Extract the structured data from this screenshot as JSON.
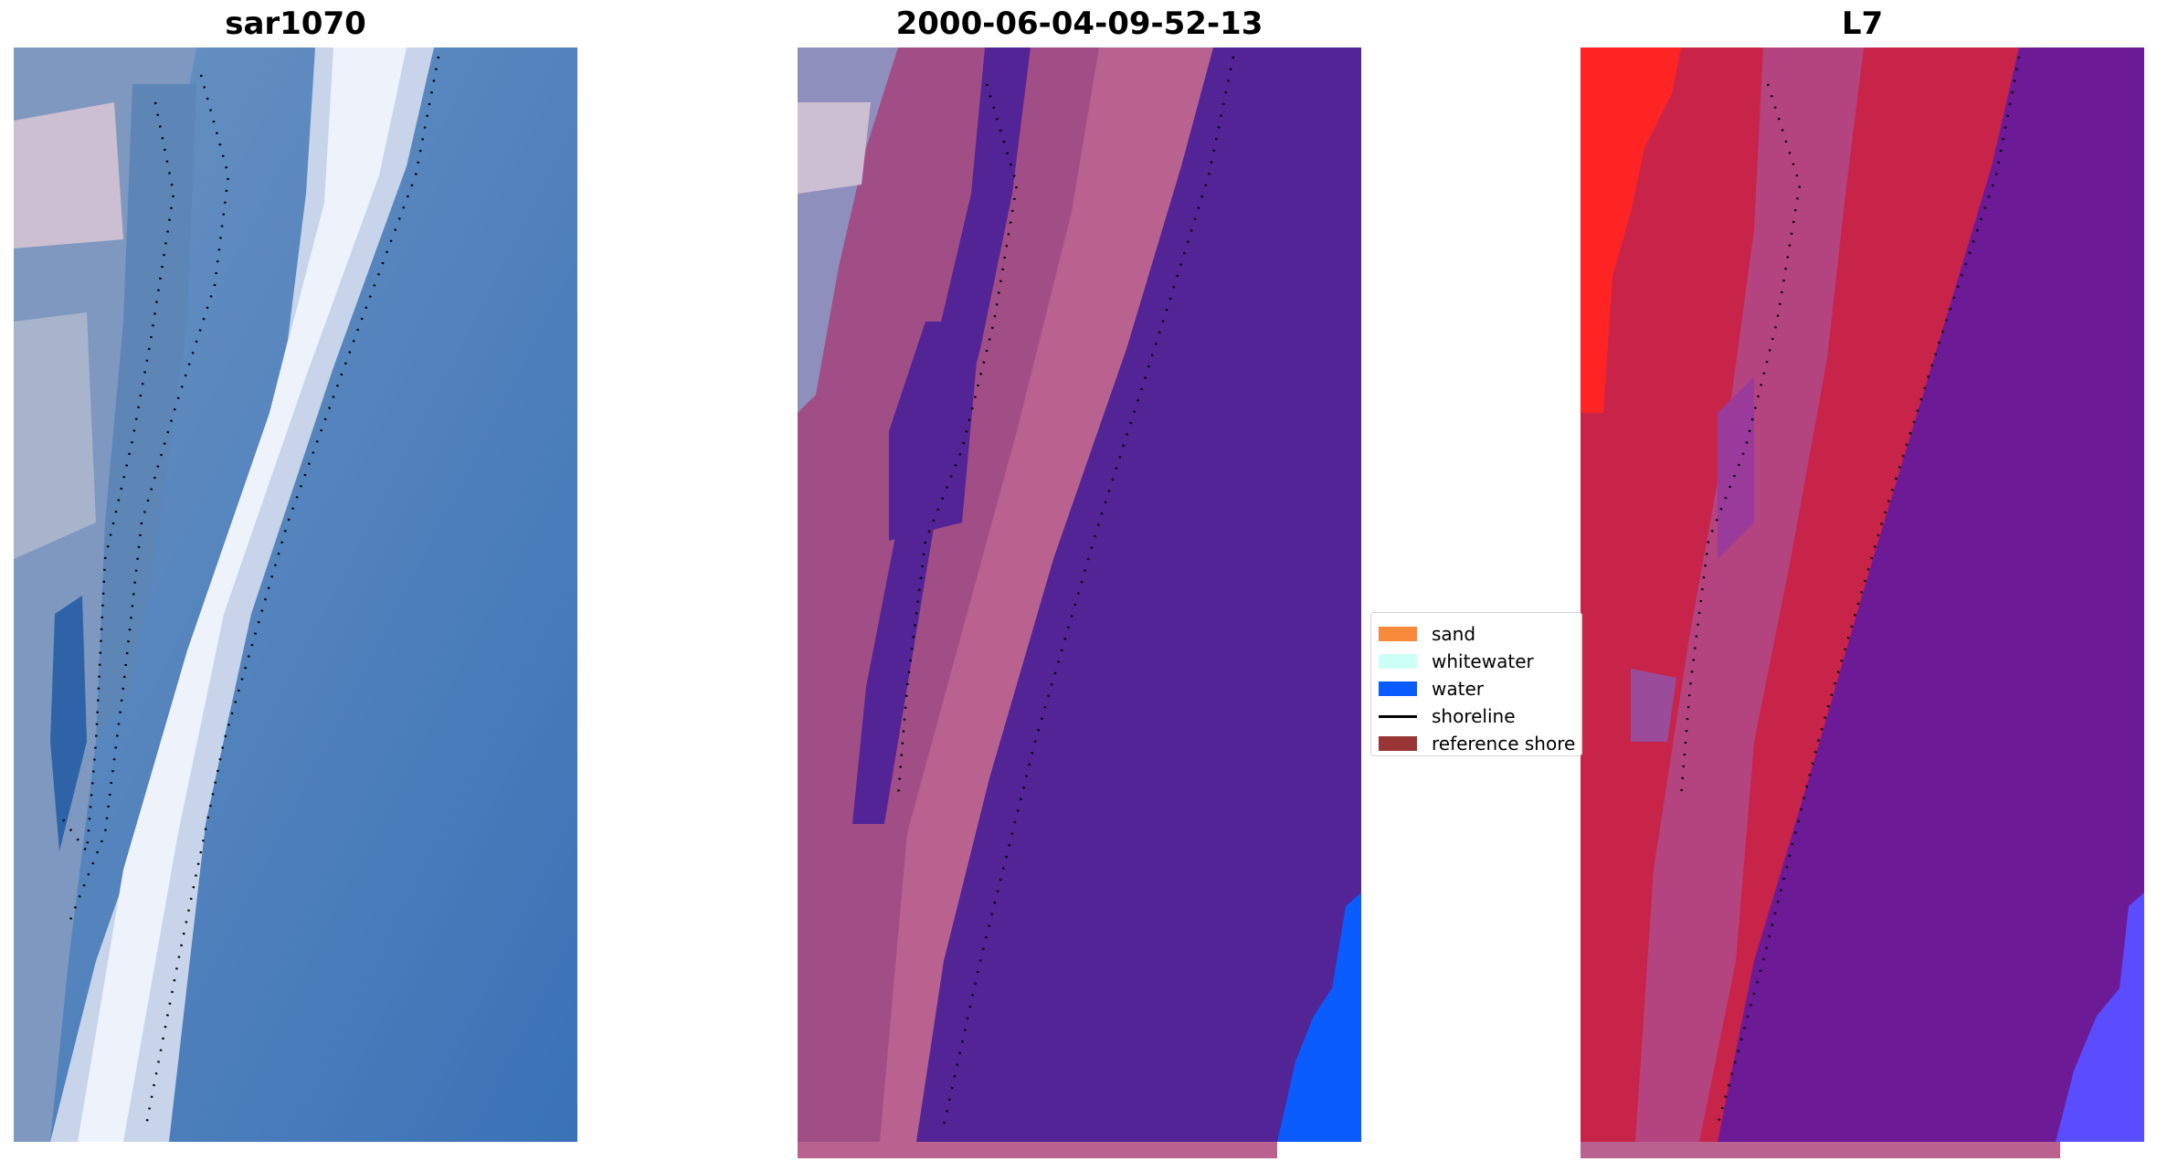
{
  "panels": [
    {
      "title": "sar1070",
      "kind": "rgb-image"
    },
    {
      "title": "2000-06-04-09-52-13",
      "kind": "classified-image"
    },
    {
      "title": "L7",
      "kind": "index-image"
    }
  ],
  "legend": [
    {
      "label": "sand",
      "type": "patch",
      "color": "#f98a3c"
    },
    {
      "label": "whitewater",
      "type": "patch",
      "color": "#ccfff5"
    },
    {
      "label": "water",
      "type": "patch",
      "color": "#0a5cff"
    },
    {
      "label": "shoreline",
      "type": "line",
      "color": "#000000"
    },
    {
      "label": "reference shore",
      "type": "patch",
      "color": "#9a3535"
    }
  ],
  "colors": {
    "sea_blue": "#3f7cbc",
    "surf_white": "#eef3fb",
    "sand_purple": "#532495",
    "pink_band": "#b9628f",
    "water_blue": "#0a5cff",
    "index_red": "#c8244a",
    "index_purple": "#6d1a97"
  }
}
